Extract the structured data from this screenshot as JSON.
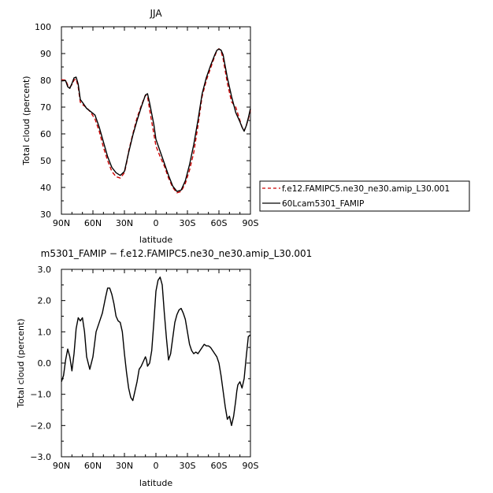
{
  "chart_data": [
    {
      "type": "line",
      "title": "JJA",
      "xlabel": "latitude",
      "ylabel": "Total cloud (percent)",
      "xlim": [
        90,
        -90
      ],
      "ylim": [
        30,
        100
      ],
      "x_tick_values": [
        90,
        60,
        30,
        0,
        -30,
        -60,
        -90
      ],
      "x_tick_labels": [
        "90N",
        "60N",
        "30N",
        "0",
        "30S",
        "60S",
        "90S"
      ],
      "y_tick_values": [
        30,
        40,
        50,
        60,
        70,
        80,
        90,
        100
      ],
      "y_tick_labels": [
        "30",
        "40",
        "50",
        "60",
        "70",
        "80",
        "90",
        "100"
      ],
      "legend_position": "right",
      "series": [
        {
          "name": "f.e12.FAMIPC5.ne30_ne30.amip_L30.001",
          "color": "#cc0000",
          "dash": "dashed",
          "x": [
            90,
            86,
            84,
            82,
            80,
            78,
            76,
            74,
            72,
            70,
            66,
            62,
            58,
            54,
            50,
            46,
            42,
            38,
            34,
            30,
            28,
            26,
            22,
            18,
            14,
            10,
            8,
            6,
            2,
            0,
            -4,
            -8,
            -12,
            -16,
            -20,
            -24,
            -28,
            -32,
            -36,
            -40,
            -44,
            -48,
            -52,
            -56,
            -58,
            -60,
            -62,
            -64,
            -68,
            -72,
            -76,
            -80,
            -82,
            -84,
            -86,
            -88,
            -90
          ],
          "y": [
            80.2,
            80.1,
            78.2,
            77.4,
            78.4,
            80.1,
            80.5,
            77.5,
            71.8,
            71.0,
            69.8,
            68.0,
            65.5,
            61.0,
            55.0,
            50.0,
            46.0,
            44.0,
            43.5,
            45.5,
            49.0,
            53.5,
            60.0,
            66.0,
            70.5,
            74.5,
            74.0,
            69.0,
            60.0,
            55.5,
            51.5,
            48.0,
            43.5,
            40.0,
            38.0,
            38.5,
            41.5,
            46.5,
            53.0,
            63.0,
            74.0,
            80.0,
            84.5,
            89.0,
            91.0,
            91.8,
            91.0,
            88.0,
            79.0,
            72.0,
            70.0,
            65.0,
            62.5,
            61.2,
            63.0,
            65.5,
            69.0
          ]
        },
        {
          "name": "60Lcam5301_FAMIP",
          "color": "#000000",
          "dash": "solid",
          "x": [
            90,
            86,
            84,
            82,
            80,
            78,
            76,
            74,
            72,
            70,
            66,
            62,
            58,
            54,
            50,
            46,
            42,
            38,
            34,
            30,
            28,
            26,
            22,
            18,
            14,
            10,
            8,
            6,
            2,
            0,
            -4,
            -8,
            -12,
            -16,
            -20,
            -24,
            -28,
            -32,
            -36,
            -40,
            -44,
            -48,
            -52,
            -56,
            -58,
            -60,
            -62,
            -64,
            -68,
            -72,
            -76,
            -80,
            -82,
            -84,
            -86,
            -88,
            -90
          ],
          "y": [
            79.8,
            79.9,
            77.6,
            77.0,
            78.8,
            80.9,
            81.2,
            78.5,
            72.8,
            71.8,
            69.5,
            68.3,
            67.0,
            62.5,
            57.0,
            51.5,
            47.5,
            45.5,
            44.5,
            46.0,
            49.5,
            53.0,
            59.5,
            65.0,
            70.0,
            74.5,
            75.0,
            71.5,
            63.5,
            58.0,
            53.5,
            49.0,
            44.5,
            40.5,
            38.5,
            39.0,
            42.5,
            48.5,
            56.0,
            65.0,
            75.0,
            81.0,
            85.5,
            89.5,
            91.2,
            91.7,
            91.3,
            89.5,
            81.0,
            74.0,
            68.0,
            64.5,
            62.5,
            61.0,
            63.0,
            66.0,
            69.5
          ]
        }
      ]
    },
    {
      "type": "line",
      "title": "m5301_FAMIP − f.e12.FAMIPC5.ne30_ne30.amip_L30.001",
      "xlabel": "latitude",
      "ylabel": "Total cloud (percent)",
      "xlim": [
        90,
        -90
      ],
      "ylim": [
        -3.0,
        3.0
      ],
      "x_tick_values": [
        90,
        60,
        30,
        0,
        -30,
        -60,
        -90
      ],
      "x_tick_labels": [
        "90N",
        "60N",
        "30N",
        "0",
        "30S",
        "60S",
        "90S"
      ],
      "y_tick_values": [
        -3.0,
        -2.0,
        -1.0,
        0.0,
        1.0,
        2.0,
        3.0
      ],
      "y_tick_labels": [
        "−3.0",
        "−2.0",
        "−1.0",
        "0.0",
        "1.0",
        "2.0",
        "3.0"
      ],
      "series": [
        {
          "color": "#000000",
          "dash": "solid",
          "x": [
            90,
            88,
            86,
            84,
            82,
            80,
            78,
            76,
            74,
            72,
            70,
            68,
            66,
            63,
            60,
            57,
            54,
            51,
            48,
            46,
            44,
            42,
            40,
            38,
            36,
            34,
            32,
            30,
            28,
            26,
            24,
            22,
            20,
            18,
            16,
            14,
            12,
            10,
            9,
            8,
            6,
            4,
            2,
            0,
            -2,
            -4,
            -6,
            -8,
            -10,
            -12,
            -14,
            -16,
            -18,
            -20,
            -22,
            -24,
            -26,
            -28,
            -30,
            -32,
            -34,
            -36,
            -38,
            -40,
            -42,
            -44,
            -46,
            -48,
            -50,
            -52,
            -54,
            -56,
            -58,
            -60,
            -62,
            -64,
            -66,
            -68,
            -70,
            -72,
            -74,
            -76,
            -77,
            -78,
            -80,
            -82,
            -84,
            -86,
            -88,
            -90
          ],
          "y": [
            -0.6,
            -0.4,
            0.1,
            0.45,
            0.2,
            -0.25,
            0.3,
            1.1,
            1.45,
            1.35,
            1.45,
            1.0,
            0.2,
            -0.2,
            0.2,
            1.0,
            1.3,
            1.6,
            2.1,
            2.4,
            2.4,
            2.2,
            1.9,
            1.5,
            1.35,
            1.3,
            1.0,
            0.3,
            -0.3,
            -0.8,
            -1.1,
            -1.2,
            -0.9,
            -0.6,
            -0.2,
            -0.1,
            0.05,
            0.2,
            0.1,
            -0.1,
            0.0,
            0.4,
            1.3,
            2.3,
            2.65,
            2.75,
            2.5,
            1.6,
            0.8,
            0.1,
            0.3,
            0.8,
            1.3,
            1.55,
            1.7,
            1.75,
            1.6,
            1.4,
            1.0,
            0.6,
            0.4,
            0.3,
            0.35,
            0.3,
            0.4,
            0.5,
            0.6,
            0.55,
            0.55,
            0.5,
            0.4,
            0.3,
            0.2,
            0.0,
            -0.4,
            -0.9,
            -1.4,
            -1.8,
            -1.7,
            -2.0,
            -1.7,
            -1.2,
            -0.9,
            -0.7,
            -0.6,
            -0.8,
            -0.5,
            0.2,
            0.85,
            0.9
          ]
        }
      ]
    }
  ]
}
